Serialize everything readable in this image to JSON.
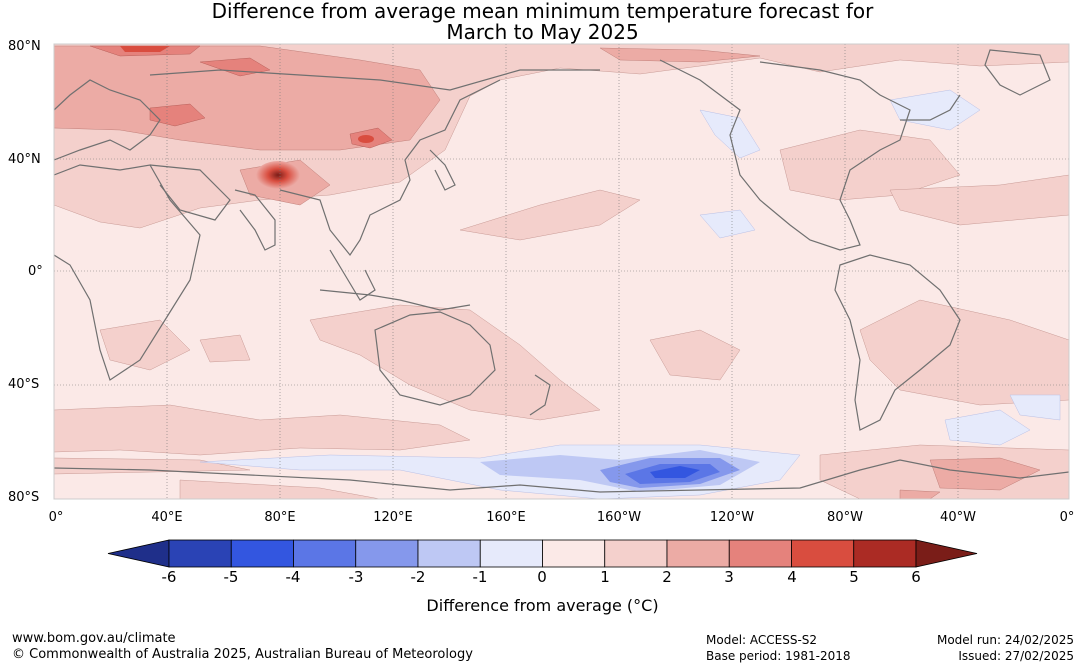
{
  "title": {
    "line1": "Difference from average mean minimum temperature forecast for",
    "line2": "March to May 2025"
  },
  "map": {
    "lat_labels": [
      "80°N",
      "40°N",
      "0°",
      "40°S",
      "80°S"
    ],
    "lon_labels": [
      "0°",
      "40°E",
      "80°E",
      "120°E",
      "160°E",
      "160°W",
      "120°W",
      "80°W",
      "40°W",
      "0°"
    ]
  },
  "colorbar": {
    "ticks": [
      "-6",
      "-5",
      "-4",
      "-3",
      "-2",
      "-1",
      "0",
      "1",
      "2",
      "3",
      "4",
      "5",
      "6"
    ],
    "colors": [
      "#1f2f8a",
      "#2a43b5",
      "#3356e0",
      "#5b76e6",
      "#8598ec",
      "#bec8f4",
      "#e6eafb",
      "#fbe9e7",
      "#f4d0cc",
      "#ecaba5",
      "#e5827c",
      "#d94d3f",
      "#ab2b24",
      "#7a1d18"
    ],
    "label": "Difference from average (°C)"
  },
  "footer": {
    "url": "www.bom.gov.au/climate",
    "copyright": "© Commonwealth of Australia 2025, Australian Bureau of Meteorology",
    "model": "Model: ACCESS-S2",
    "base_period": "Base period: 1981-2018",
    "model_run": "Model run: 24/02/2025",
    "issued": "Issued: 27/02/2025"
  }
}
